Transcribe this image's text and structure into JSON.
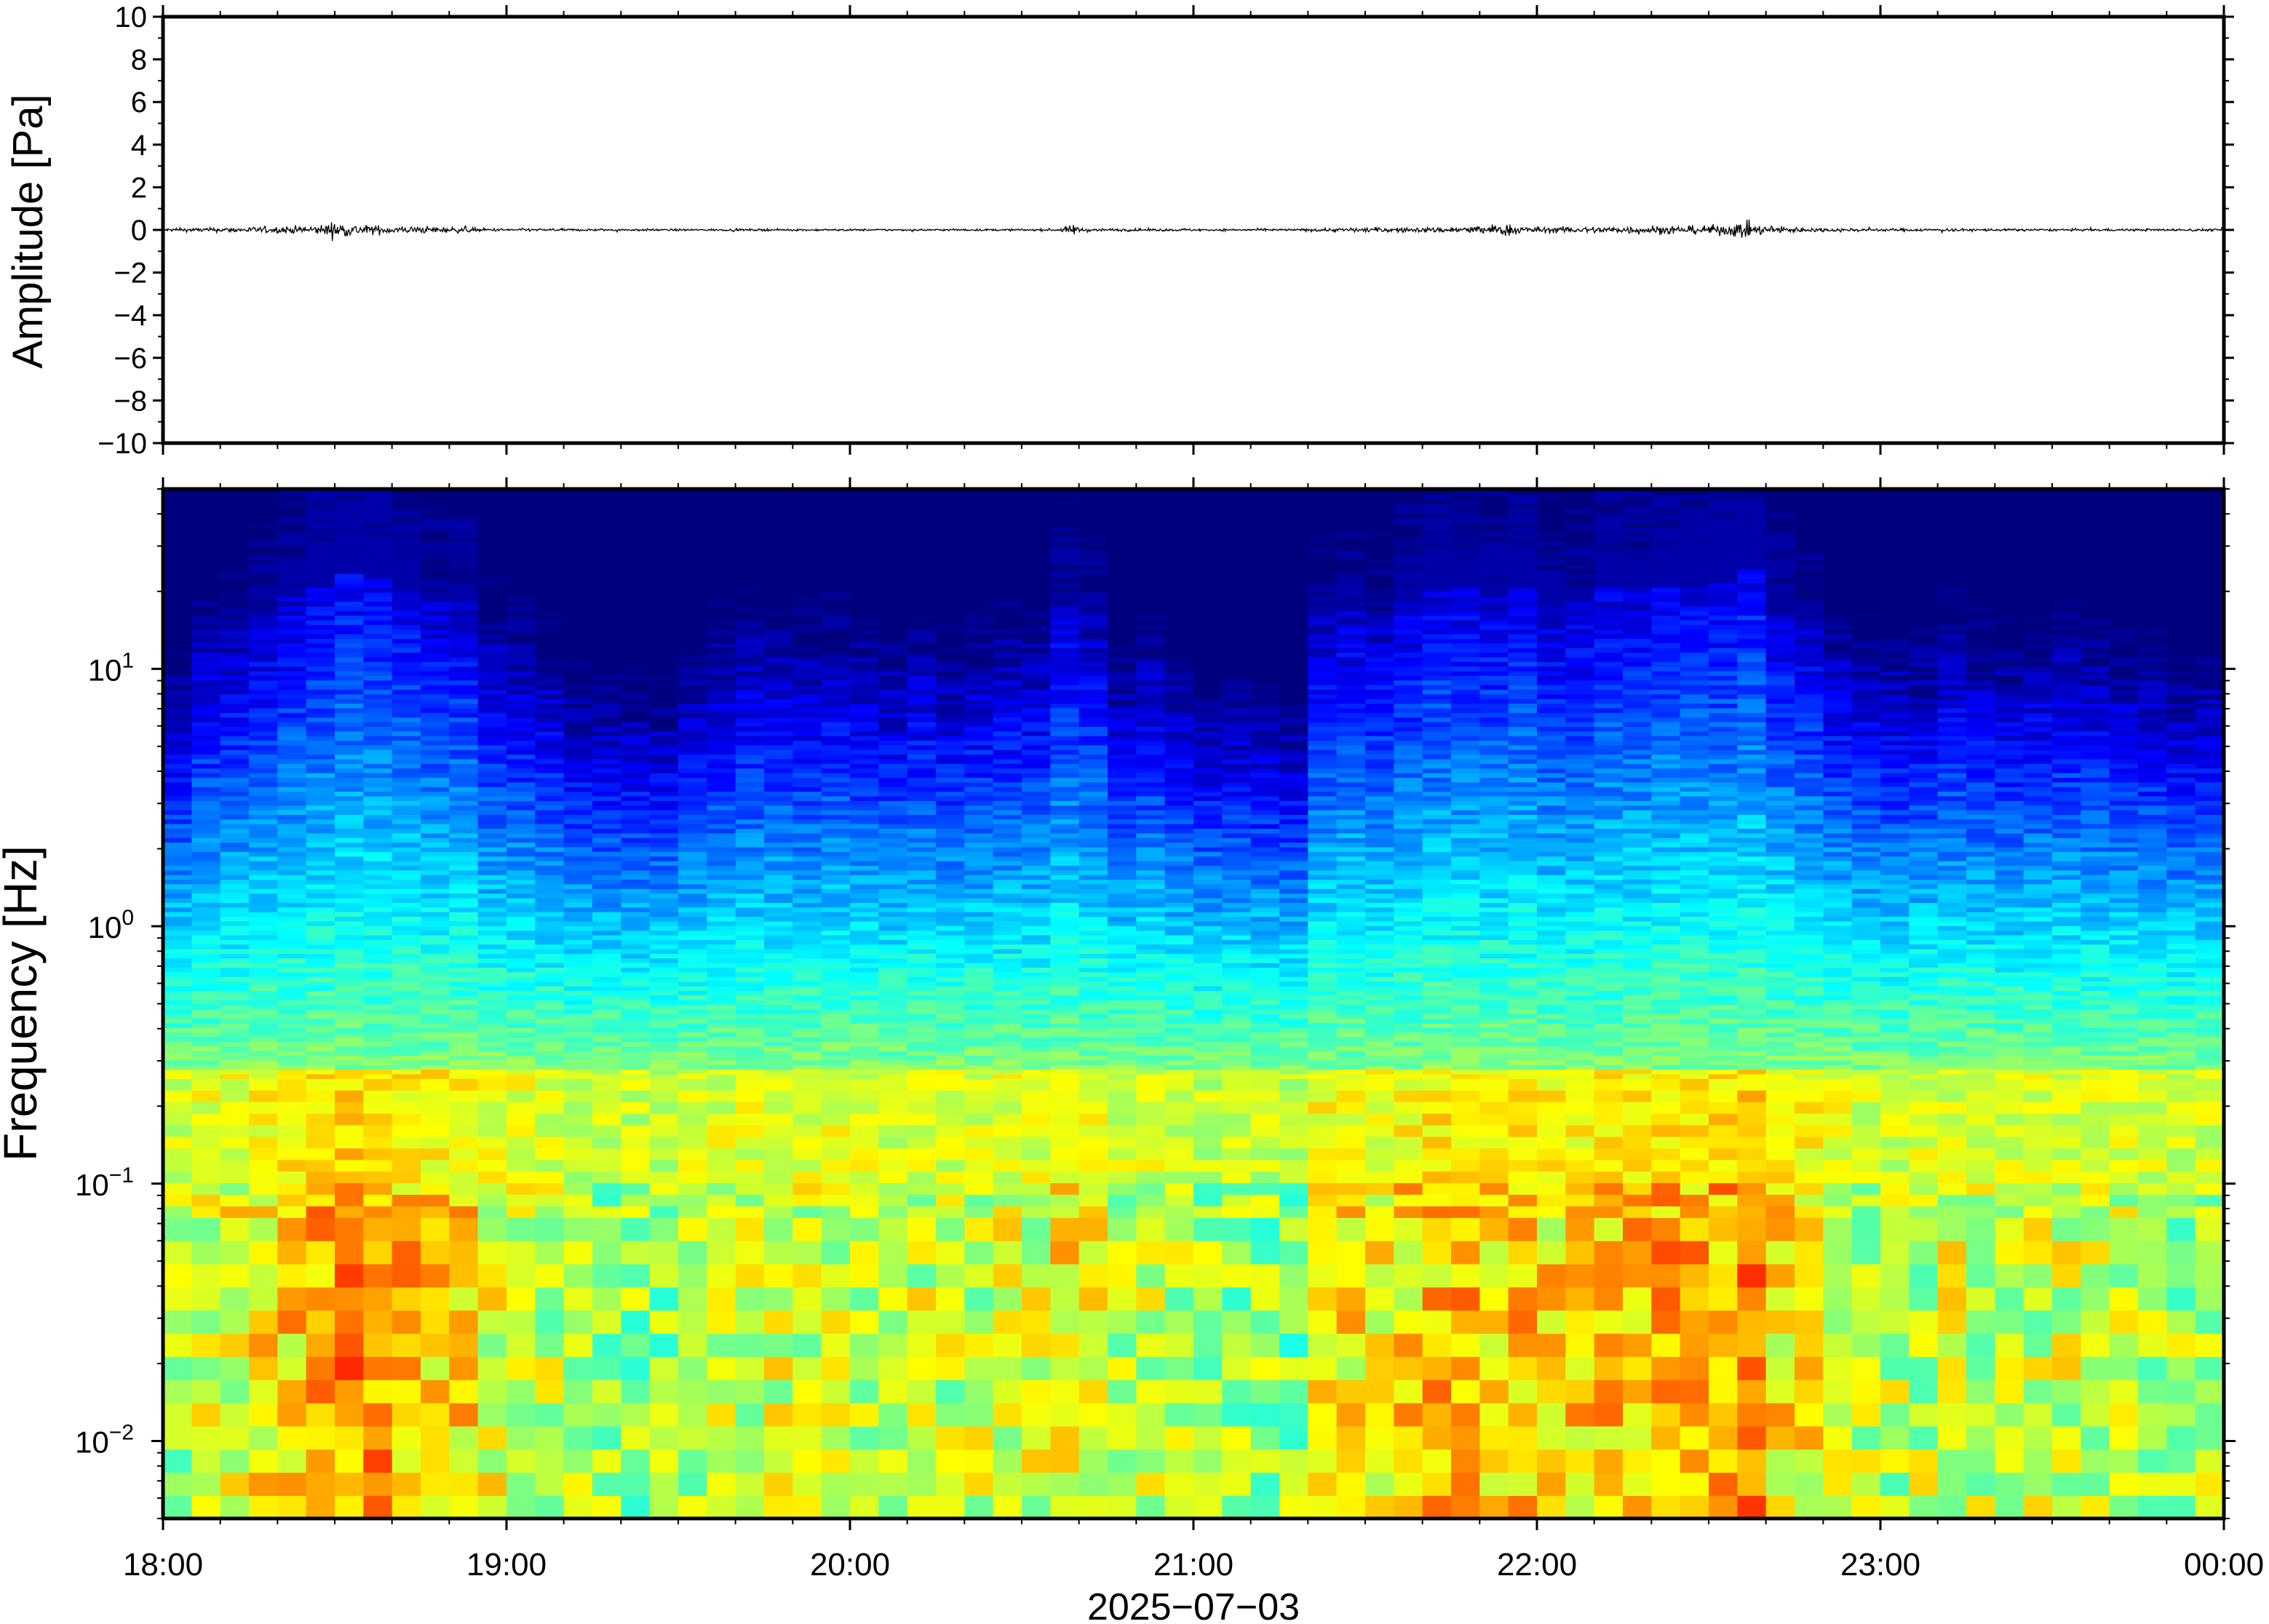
{
  "chart_data": [
    {
      "type": "line",
      "panel": "waveform",
      "ylabel": "Amplitude [Pa]",
      "ylim": [
        -10,
        10
      ],
      "yticks": [
        -10,
        -8,
        -6,
        -4,
        -2,
        0,
        2,
        4,
        6,
        8,
        10
      ],
      "ytick_labels": [
        "−10",
        "−8",
        "−6",
        "−4",
        "−2",
        "0",
        "2",
        "4",
        "6",
        "8",
        "10"
      ],
      "xlim_hours": [
        18,
        24
      ],
      "line_color": "#000000",
      "envelope": {
        "x_hours": [
          18.0,
          18.2,
          18.35,
          18.45,
          18.5,
          18.55,
          18.7,
          18.85,
          18.95,
          19.2,
          19.6,
          20.0,
          20.4,
          20.6,
          20.65,
          20.7,
          21.0,
          21.3,
          21.5,
          21.7,
          21.85,
          21.9,
          22.0,
          22.2,
          22.35,
          22.45,
          22.55,
          22.6,
          22.65,
          22.8,
          23.0,
          23.5,
          24.0
        ],
        "amplitude_pa": [
          0.15,
          0.25,
          0.35,
          0.45,
          0.85,
          0.55,
          0.35,
          0.3,
          0.15,
          0.12,
          0.1,
          0.1,
          0.1,
          0.12,
          0.5,
          0.15,
          0.12,
          0.12,
          0.25,
          0.25,
          0.45,
          0.65,
          0.3,
          0.35,
          0.45,
          0.4,
          0.55,
          0.9,
          0.5,
          0.2,
          0.15,
          0.12,
          0.12
        ]
      }
    },
    {
      "type": "heatmap",
      "panel": "spectrogram",
      "ylabel": "Frequency [Hz]",
      "xlabel": "2025−07−03",
      "yscale": "log",
      "ylim_hz": [
        0.005,
        50
      ],
      "yticks": [
        {
          "base": "10",
          "exp": "−2"
        },
        {
          "base": "10",
          "exp": "−1"
        },
        {
          "base": "10",
          "exp": "0"
        },
        {
          "base": "10",
          "exp": "1"
        }
      ],
      "xticks": [
        "18:00",
        "19:00",
        "20:00",
        "21:00",
        "22:00",
        "23:00",
        "00:00"
      ],
      "xlim_hours": [
        18,
        24
      ],
      "colormap": "jet",
      "colormap_stops": [
        "#00007f",
        "#0000ff",
        "#007fff",
        "#00ffff",
        "#7fff7f",
        "#ffff00",
        "#ff7f00",
        "#ff0000",
        "#7f0000"
      ],
      "background_color": "#0a0a80",
      "activity": {
        "x_hours": [
          18.0,
          18.15,
          18.3,
          18.45,
          18.5,
          18.65,
          18.85,
          18.95,
          19.2,
          19.5,
          19.65,
          19.8,
          20.2,
          20.55,
          20.65,
          20.75,
          21.0,
          21.3,
          21.35,
          21.6,
          21.85,
          21.95,
          22.05,
          22.3,
          22.55,
          22.6,
          22.7,
          22.85,
          23.0,
          23.5,
          24.0
        ],
        "level": [
          0.35,
          0.5,
          0.65,
          0.8,
          0.95,
          0.85,
          0.75,
          0.55,
          0.35,
          0.3,
          0.5,
          0.5,
          0.45,
          0.5,
          0.75,
          0.45,
          0.35,
          0.3,
          0.6,
          0.7,
          0.85,
          0.8,
          0.65,
          0.85,
          0.9,
          1.0,
          0.7,
          0.5,
          0.45,
          0.45,
          0.4
        ]
      }
    }
  ]
}
